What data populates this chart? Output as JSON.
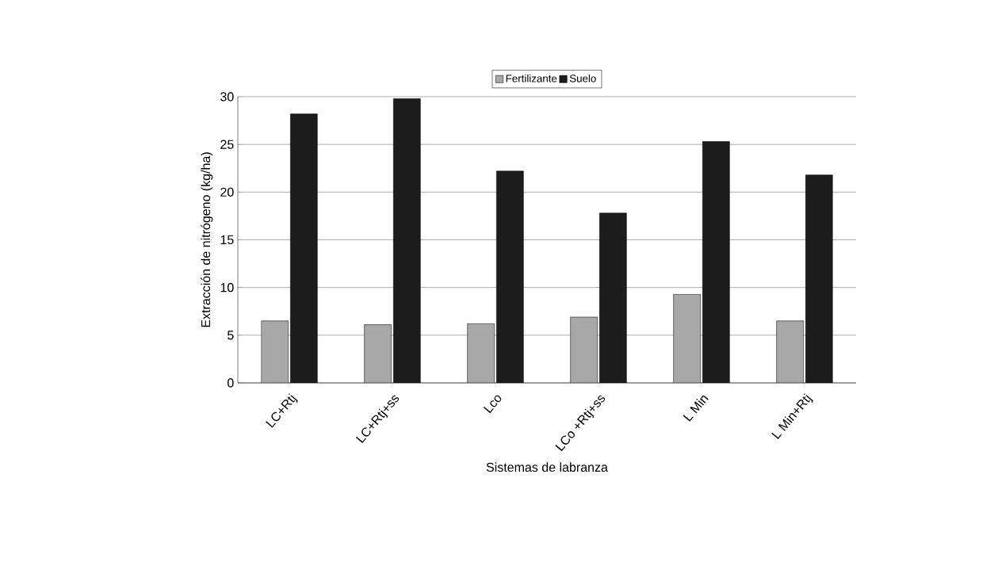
{
  "chart_data": {
    "type": "bar",
    "xlabel": "Sistemas de labranza",
    "ylabel": "Extracción de nitrógeno (kg/ha)",
    "categories": [
      "LC+Rtj",
      "LC+Rtj+ss",
      "Lco",
      "LCo +Rtj+ss",
      "L Min",
      "L Min+Rtj"
    ],
    "series": [
      {
        "name": "Fertilizante",
        "color": "#a8a8a8",
        "values": [
          6.5,
          6.1,
          6.2,
          6.9,
          9.3,
          6.5
        ]
      },
      {
        "name": "Suelo",
        "color": "#1c1c1c",
        "values": [
          28.2,
          29.8,
          22.2,
          17.8,
          25.3,
          21.8
        ]
      }
    ],
    "ylim": [
      0,
      30
    ],
    "yticks": [
      0,
      5,
      10,
      15,
      20,
      25,
      30
    ],
    "grid": "y",
    "legend": "top"
  }
}
